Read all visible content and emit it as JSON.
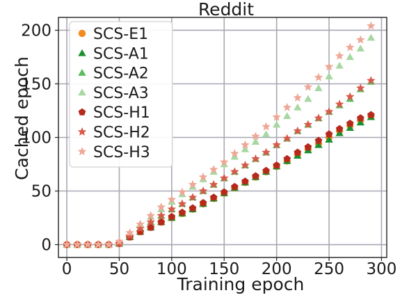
{
  "chart_data": {
    "type": "scatter",
    "title": "Reddit",
    "xlabel": "Training epoch",
    "ylabel": "Cached epoch",
    "xlim": [
      -8,
      305
    ],
    "ylim": [
      -12,
      212
    ],
    "xticks": [
      0,
      50,
      100,
      150,
      200,
      250,
      300
    ],
    "yticks": [
      0,
      50,
      100,
      150,
      200
    ],
    "xtick_labels": [
      "0",
      "50",
      "100",
      "150",
      "200",
      "250",
      "300"
    ],
    "ytick_labels": [
      "0",
      "50",
      "100",
      "150",
      "200"
    ],
    "grid": true,
    "legend_position": "top-left",
    "x": [
      0,
      10,
      20,
      30,
      40,
      50,
      60,
      70,
      80,
      90,
      100,
      110,
      120,
      130,
      140,
      150,
      160,
      170,
      180,
      190,
      200,
      210,
      220,
      230,
      240,
      250,
      260,
      270,
      280,
      290
    ],
    "series": [
      {
        "name": "SCS-E1",
        "marker": "circle",
        "color": "#f58a1f",
        "values": [
          0,
          0,
          0,
          0,
          0,
          1,
          7,
          12,
          16,
          21,
          25,
          29,
          33,
          38,
          43,
          48,
          53,
          58,
          63,
          68,
          73,
          78,
          84,
          89,
          94,
          100,
          106,
          111,
          116,
          120
        ]
      },
      {
        "name": "SCS-A1",
        "marker": "triangle",
        "color": "#1e8f2e",
        "values": [
          0,
          0,
          0,
          0,
          0,
          1,
          7,
          12,
          16,
          21,
          25,
          29,
          33,
          38,
          43,
          48,
          53,
          58,
          63,
          68,
          73,
          78,
          83,
          88,
          93,
          98,
          104,
          109,
          114,
          119
        ]
      },
      {
        "name": "SCS-A2",
        "marker": "triangle",
        "color": "#5cbd60",
        "values": [
          0,
          0,
          0,
          0,
          0,
          1,
          8,
          15,
          21,
          27,
          33,
          38,
          44,
          50,
          56,
          62,
          68,
          74,
          80,
          86,
          93,
          99,
          106,
          112,
          118,
          124,
          130,
          136,
          145,
          152
        ]
      },
      {
        "name": "SCS-A3",
        "marker": "triangle",
        "color": "#a8d8a2",
        "values": [
          0,
          0,
          0,
          0,
          0,
          2,
          10,
          19,
          26,
          33,
          40,
          47,
          54,
          61,
          68,
          75,
          82,
          89,
          96,
          103,
          112,
          120,
          128,
          136,
          146,
          157,
          167,
          175,
          183,
          193
        ]
      },
      {
        "name": "SCS-H1",
        "marker": "pentagon",
        "color": "#b52a1c",
        "values": [
          0,
          0,
          0,
          0,
          0,
          1,
          7,
          12,
          16,
          21,
          26,
          30,
          34,
          39,
          44,
          49,
          54,
          59,
          64,
          69,
          74,
          80,
          86,
          91,
          97,
          103,
          108,
          113,
          118,
          121
        ]
      },
      {
        "name": "SCS-H2",
        "marker": "star",
        "color": "#d9594a",
        "values": [
          0,
          0,
          0,
          0,
          0,
          1,
          8,
          15,
          21,
          27,
          33,
          38,
          44,
          50,
          56,
          62,
          68,
          74,
          80,
          86,
          93,
          99,
          106,
          112,
          118,
          124,
          131,
          138,
          146,
          153
        ]
      },
      {
        "name": "SCS-H3",
        "marker": "star",
        "color": "#eea898",
        "values": [
          0,
          0,
          0,
          0,
          0,
          3,
          11,
          19,
          27,
          35,
          42,
          49,
          56,
          63,
          70,
          77,
          85,
          93,
          101,
          110,
          119,
          128,
          137,
          147,
          156,
          166,
          176,
          184,
          191,
          204
        ]
      }
    ]
  }
}
